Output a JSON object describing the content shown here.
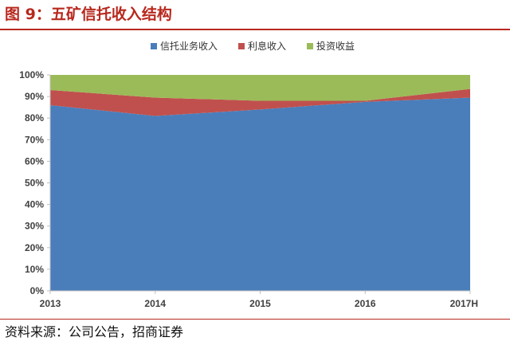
{
  "header": {
    "title": "图 9：五矿信托收入结构"
  },
  "footer": {
    "source": "资料来源：公司公告，招商证券"
  },
  "chart_data": {
    "type": "area",
    "stacked": true,
    "categories": [
      "2013",
      "2014",
      "2015",
      "2016",
      "2017H"
    ],
    "series": [
      {
        "name": "信托业务收入",
        "color": "#4a7ebb",
        "values": [
          86,
          81,
          84,
          87.5,
          89.5
        ]
      },
      {
        "name": "利息收入",
        "color": "#c0504d",
        "values": [
          7,
          8.5,
          4,
          0.5,
          4
        ]
      },
      {
        "name": "投资收益",
        "color": "#9bbb59",
        "values": [
          7,
          10.5,
          12,
          12,
          6.5
        ]
      }
    ],
    "y_ticks": [
      "0%",
      "10%",
      "20%",
      "30%",
      "40%",
      "50%",
      "60%",
      "70%",
      "80%",
      "90%",
      "100%"
    ],
    "ylim": [
      0,
      100
    ],
    "y_unit": "%",
    "legend_position": "top",
    "grid": false
  }
}
